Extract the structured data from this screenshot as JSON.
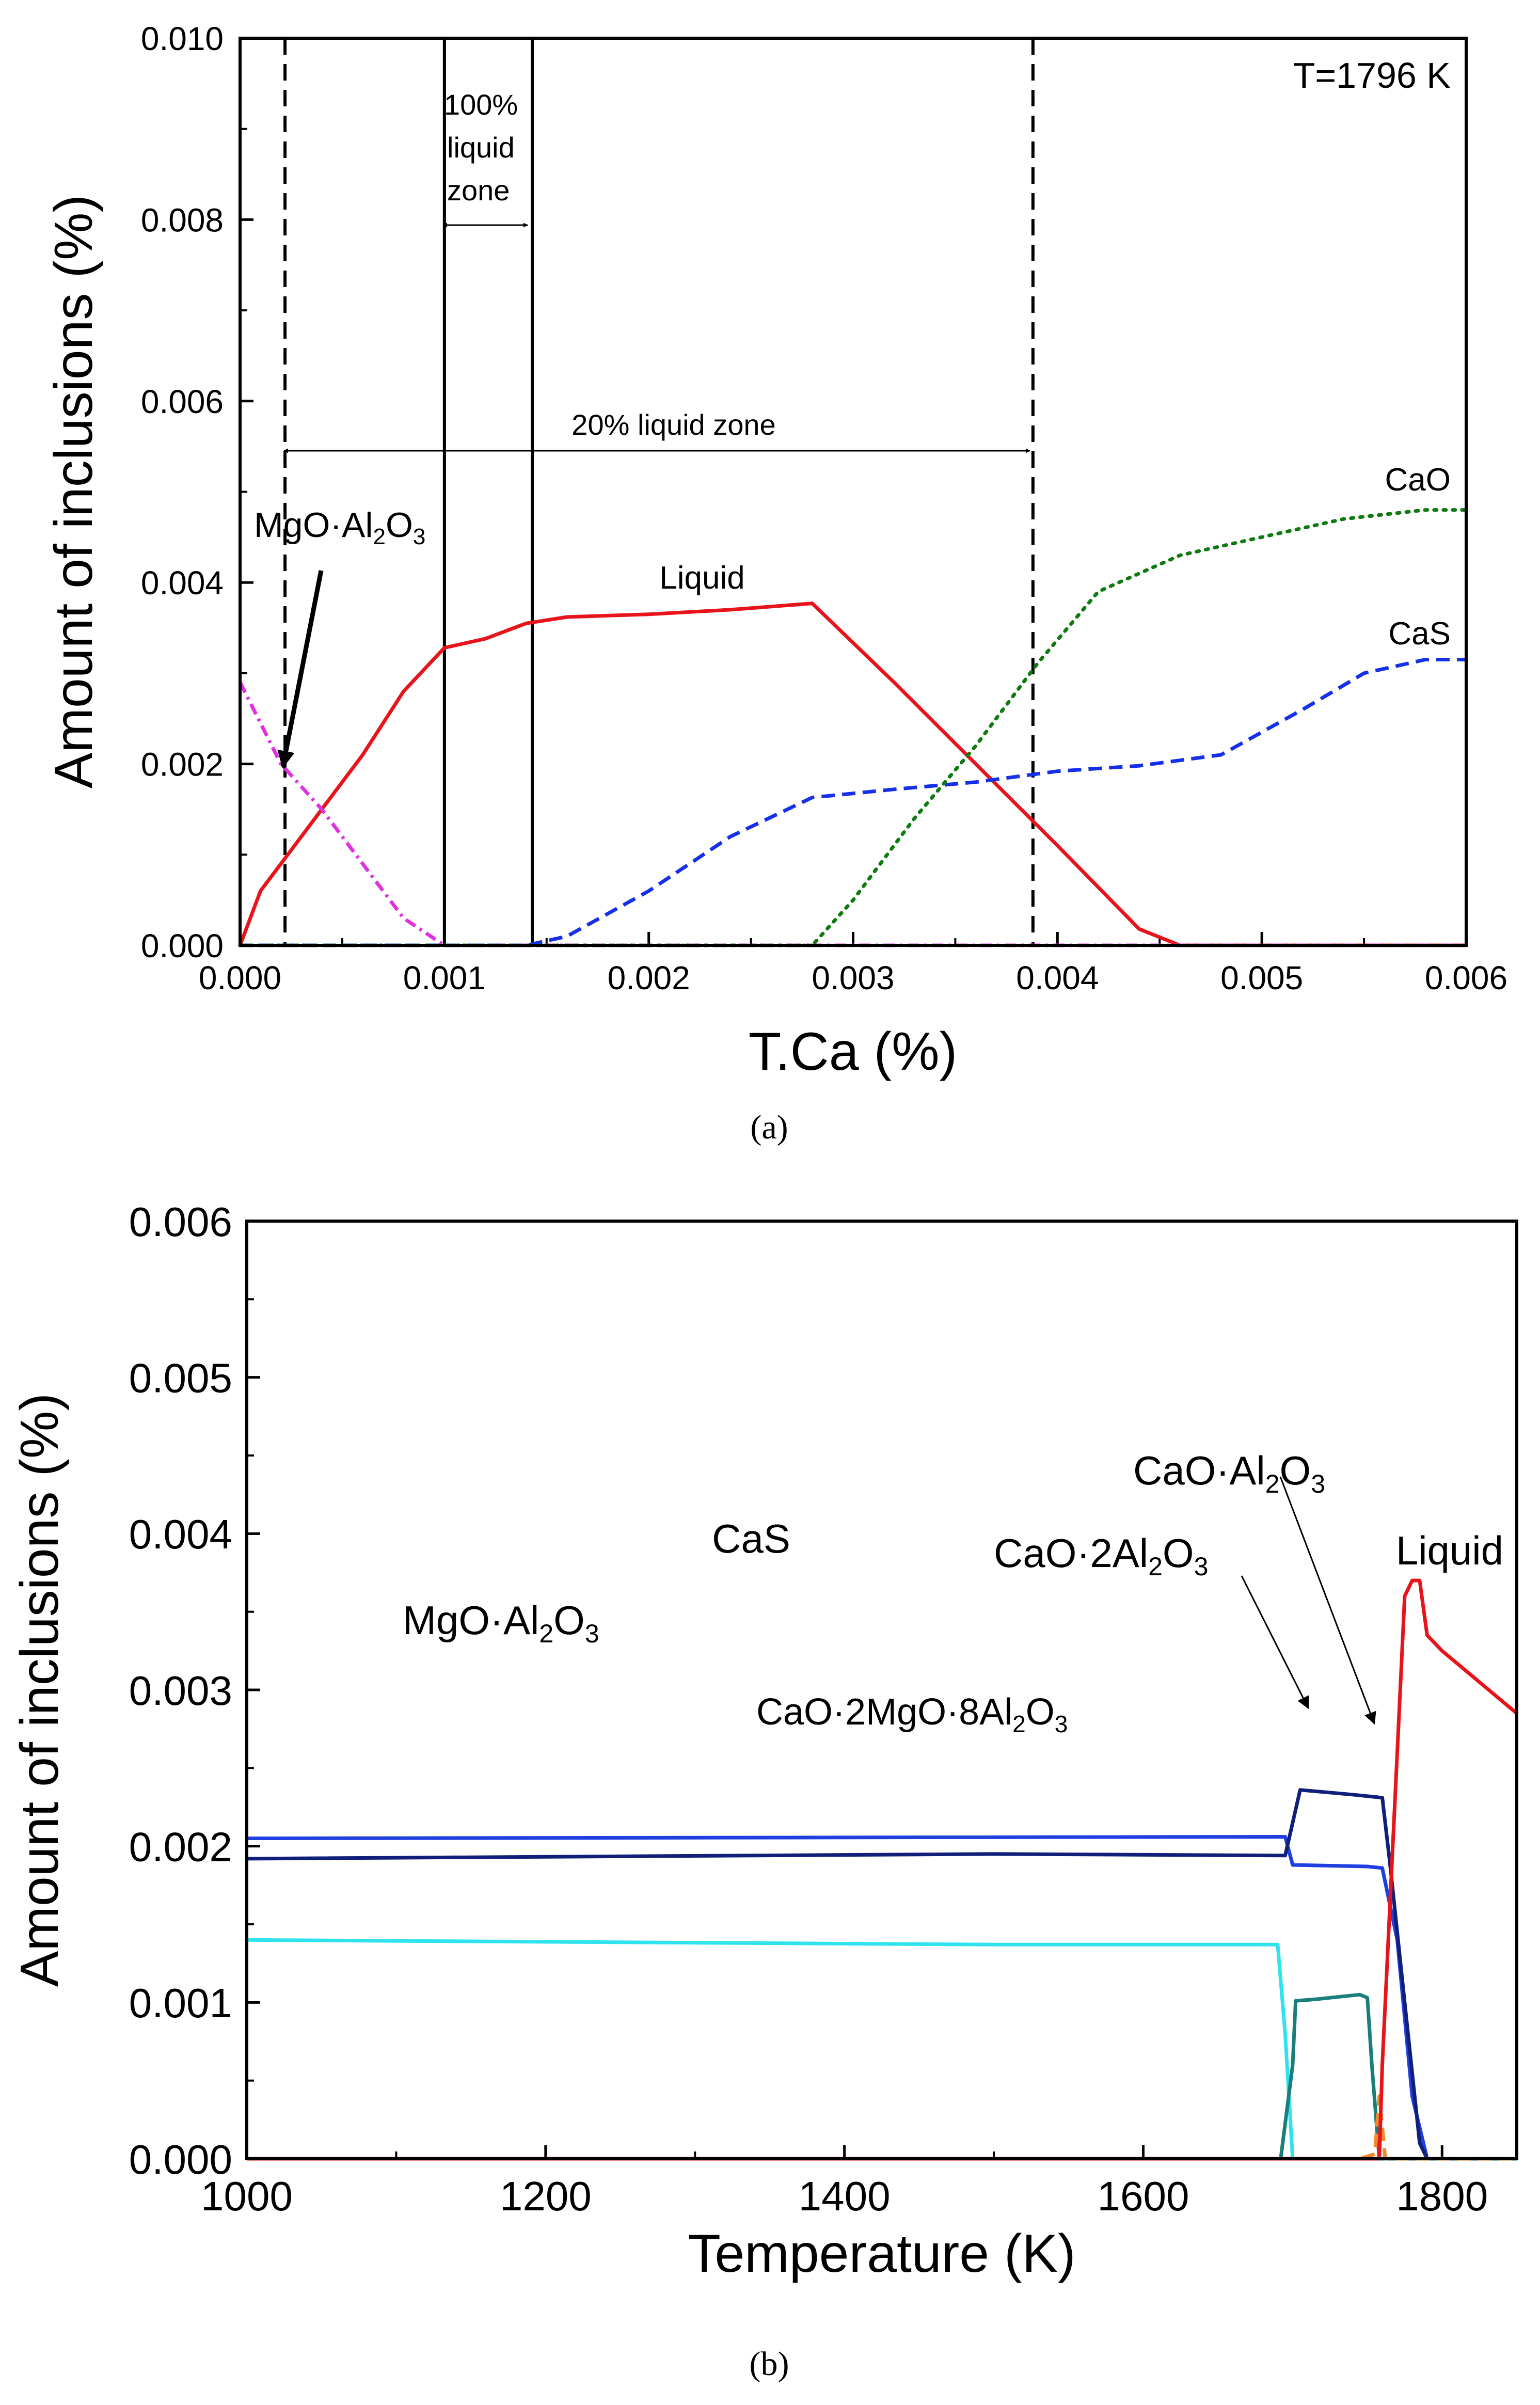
{
  "chart_data": [
    {
      "panel": "(a)",
      "type": "line",
      "caption": "(a)",
      "xlabel": "T.Ca (%)",
      "ylabel": "Amount of inclusions (%)",
      "xlim": [
        0,
        0.006
      ],
      "ylim": [
        0,
        0.01
      ],
      "xticks": [
        0.0,
        0.001,
        0.002,
        0.003,
        0.004,
        0.005,
        0.006
      ],
      "xtick_labels": [
        "0.000",
        "0.001",
        "0.002",
        "0.003",
        "0.004",
        "0.005",
        "0.006"
      ],
      "yticks": [
        0.0,
        0.002,
        0.004,
        0.006,
        0.008,
        0.01
      ],
      "ytick_labels": [
        "0.000",
        "0.002",
        "0.004",
        "0.006",
        "0.008",
        "0.010"
      ],
      "temperature_label": "T=1796 K",
      "series": [
        {
          "name": "Liquid",
          "color": "#e8141b",
          "style": "solid",
          "x": [
            0,
            0.0001,
            0.0002,
            0.0004,
            0.0006,
            0.0008,
            0.001,
            0.0012,
            0.0014,
            0.0016,
            0.002,
            0.0024,
            0.0028,
            0.0032,
            0.0036,
            0.004,
            0.0044,
            0.0046,
            0.006
          ],
          "y": [
            0,
            0.0006,
            0.0009,
            0.0015,
            0.0021,
            0.0028,
            0.00328,
            0.00338,
            0.00355,
            0.00362,
            0.00365,
            0.0037,
            0.00377,
            0.0029,
            0.002,
            0.0011,
            0.00018,
            0,
            0
          ]
        },
        {
          "name": "MgO·Al2O3",
          "color": "#e030e0",
          "style": "dashdot",
          "x": [
            0,
            0.0002,
            0.0004,
            0.0006,
            0.0008,
            0.001,
            0.006
          ],
          "y": [
            0.0029,
            0.002,
            0.0015,
            0.0009,
            0.0003,
            0,
            0
          ]
        },
        {
          "name": "CaS",
          "color": "#1530e8",
          "style": "dashed",
          "x": [
            0,
            0.0014,
            0.0016,
            0.002,
            0.0024,
            0.0028,
            0.0032,
            0.0036,
            0.004,
            0.0044,
            0.0048,
            0.0052,
            0.0055,
            0.0058,
            0.006
          ],
          "y": [
            0,
            0,
            0.0001,
            0.0006,
            0.0012,
            0.00163,
            0.00172,
            0.0018,
            0.00192,
            0.00198,
            0.0021,
            0.0026,
            0.003,
            0.00315,
            0.00315
          ]
        },
        {
          "name": "CaO",
          "color": "#0f7a0f",
          "style": "dotted",
          "x": [
            0,
            0.0028,
            0.003,
            0.0033,
            0.0036,
            0.0039,
            0.0042,
            0.0046,
            0.005,
            0.0054,
            0.0058,
            0.006
          ],
          "y": [
            0,
            0,
            0.0005,
            0.0014,
            0.0022,
            0.0031,
            0.0039,
            0.0043,
            0.0045,
            0.0047,
            0.0048,
            0.0048
          ]
        }
      ],
      "annotations": {
        "liquid_label": "Liquid",
        "cao_label": "CaO",
        "cas_label": "CaS",
        "mgo_label_main": "MgO·Al",
        "mgo_sub1": "2",
        "mgo_label_mid": "O",
        "mgo_sub2": "3",
        "zone100_line1": "100%",
        "zone100_line2": "liquid",
        "zone100_line3": "zone",
        "zone20": "20% liquid zone"
      },
      "vertical_lines": [
        {
          "x": 0.001,
          "style": "solid"
        },
        {
          "x": 0.00143,
          "style": "solid"
        },
        {
          "x": 0.00022,
          "style": "dashed"
        },
        {
          "x": 0.00388,
          "style": "dashed"
        }
      ]
    },
    {
      "panel": "(b)",
      "type": "line",
      "caption": "(b)",
      "xlabel": "Temperature (K)",
      "ylabel": "Amount of inclusions (%)",
      "xlim": [
        1000,
        1850
      ],
      "ylim": [
        0,
        0.006
      ],
      "xticks": [
        1000,
        1200,
        1400,
        1600,
        1800
      ],
      "xtick_labels": [
        "1000",
        "1200",
        "1400",
        "1600",
        "1800"
      ],
      "yticks": [
        0.0,
        0.001,
        0.002,
        0.003,
        0.004,
        0.005,
        0.006
      ],
      "ytick_labels": [
        "0.000",
        "0.001",
        "0.002",
        "0.003",
        "0.004",
        "0.005",
        "0.006"
      ],
      "series": [
        {
          "name": "CaS",
          "color": "#1f3fe0",
          "style": "solid",
          "x": [
            1000,
            1695,
            1700,
            1750,
            1760,
            1770,
            1780,
            1790,
            1850
          ],
          "y": [
            0.00205,
            0.00206,
            0.00188,
            0.00187,
            0.00186,
            0.0014,
            0.0004,
            0,
            0
          ]
        },
        {
          "name": "MgO·Al2O3",
          "color": "#10207a",
          "style": "solid",
          "x": [
            1000,
            1500,
            1695,
            1705,
            1740,
            1760,
            1765,
            1775,
            1785,
            1790,
            1850
          ],
          "y": [
            0.00192,
            0.00195,
            0.00194,
            0.00236,
            0.00233,
            0.00231,
            0.0019,
            0.001,
            0.0001,
            0,
            0
          ]
        },
        {
          "name": "CaO·2MgO·8Al2O3",
          "color": "#2ee3ee",
          "style": "solid",
          "x": [
            1000,
            1500,
            1690,
            1695,
            1700,
            1850
          ],
          "y": [
            0.0014,
            0.00137,
            0.00137,
            0.0008,
            0,
            0
          ]
        },
        {
          "name": "CaO·2Al2O3",
          "color": "#1a7f7a",
          "style": "solid",
          "x": [
            1000,
            1692,
            1700,
            1702,
            1715,
            1745,
            1750,
            1753,
            1758,
            1850
          ],
          "y": [
            0,
            0,
            0.0006,
            0.00101,
            0.00102,
            0.00105,
            0.00103,
            0.0006,
            0,
            0
          ]
        },
        {
          "name": "CaO·Al2O3",
          "color": "#f08a2a",
          "style": "dashed",
          "x": [
            1000,
            1745,
            1755,
            1758,
            1762,
            1850
          ],
          "y": [
            0,
            0,
            3e-05,
            0.0004,
            0,
            0
          ]
        },
        {
          "name": "Liquid",
          "color": "#e8141b",
          "style": "solid",
          "x": [
            1000,
            1758,
            1760,
            1765,
            1770,
            1775,
            1780,
            1785,
            1790,
            1800,
            1850
          ],
          "y": [
            0,
            0,
            0.0006,
            0.0016,
            0.0026,
            0.0036,
            0.0037,
            0.0037,
            0.00335,
            0.00325,
            0.00285
          ]
        }
      ],
      "annotations": {
        "liquid_label": "Liquid",
        "cas_label": "CaS",
        "mgo_a": "MgO·Al",
        "mgo_s1": "2",
        "mgo_b": "O",
        "mgo_s2": "3",
        "caoal_a": "CaO·Al",
        "caoal_s1": "2",
        "caoal_b": "O",
        "caoal_s2": "3",
        "cao2al_a": "CaO·2Al",
        "cao2al_s1": "2",
        "cao2al_b": "O",
        "cao2al_s2": "3",
        "cmg_a": "CaO·2MgO·8Al",
        "cmg_s1": "2",
        "cmg_b": "O",
        "cmg_s2": "3"
      }
    }
  ]
}
